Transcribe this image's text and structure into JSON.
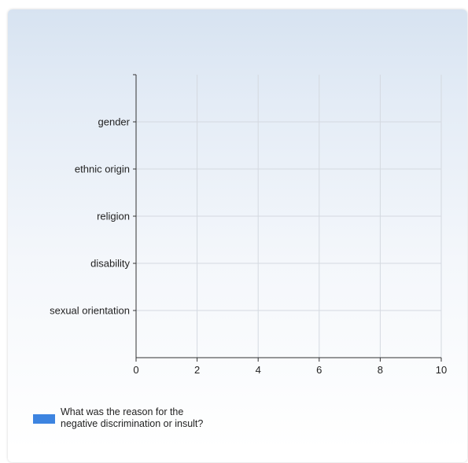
{
  "chart_data": {
    "type": "bar",
    "orientation": "horizontal",
    "categories": [
      "gender",
      "ethnic origin",
      "religion",
      "disability",
      "sexual orientation"
    ],
    "series": [
      {
        "name": "What was the reason for the negative discrimination or insult?",
        "values": [
          0,
          0,
          0,
          0,
          0
        ],
        "color": "#3d84e0"
      }
    ],
    "xlim": [
      0,
      10
    ],
    "xticks": [
      0,
      2,
      4,
      6,
      8,
      10
    ],
    "grid": true,
    "legend_position": "bottom-left"
  }
}
